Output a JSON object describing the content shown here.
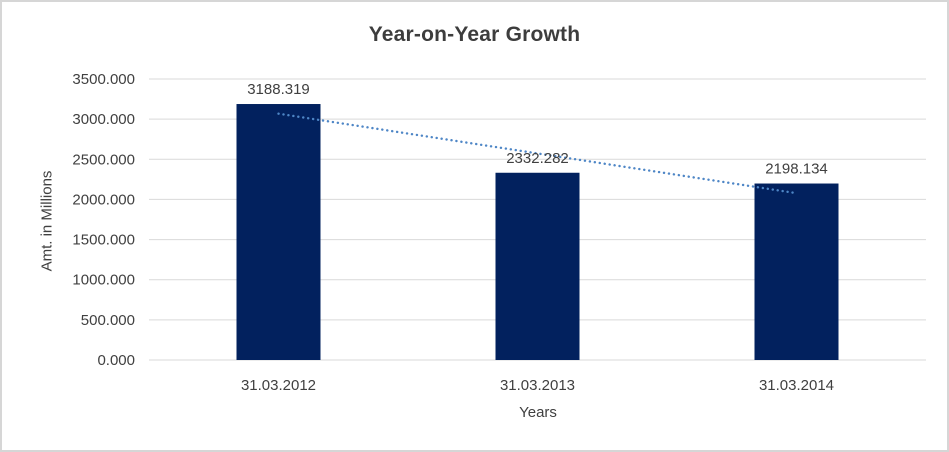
{
  "chart_data": {
    "type": "bar",
    "title": "Year-on-Year Growth",
    "categories": [
      "31.03.2012",
      "31.03.2013",
      "31.03.2014"
    ],
    "values": [
      3188.319,
      2332.282,
      2198.134
    ],
    "data_labels": [
      "3188.319",
      "2332.282",
      "2198.134"
    ],
    "xlabel": "Years",
    "ylabel": "Amt. in Millions",
    "ylim": [
      0,
      3500
    ],
    "ytick_interval": 500,
    "ytick_labels": [
      "0.000",
      "500.000",
      "1000.000",
      "1500.000",
      "2000.000",
      "2500.000",
      "3000.000",
      "3500.000"
    ],
    "grid": true,
    "legend": "none",
    "trendline": {
      "type": "linear",
      "style": "dotted"
    },
    "colors": {
      "bar": "#02215E",
      "trendline": "#4E86C6",
      "gridline": "#d9d9d9",
      "text": "#404040",
      "title": "#3d3d3d",
      "background": "#ffffff",
      "border": "#d6d6d6"
    }
  }
}
